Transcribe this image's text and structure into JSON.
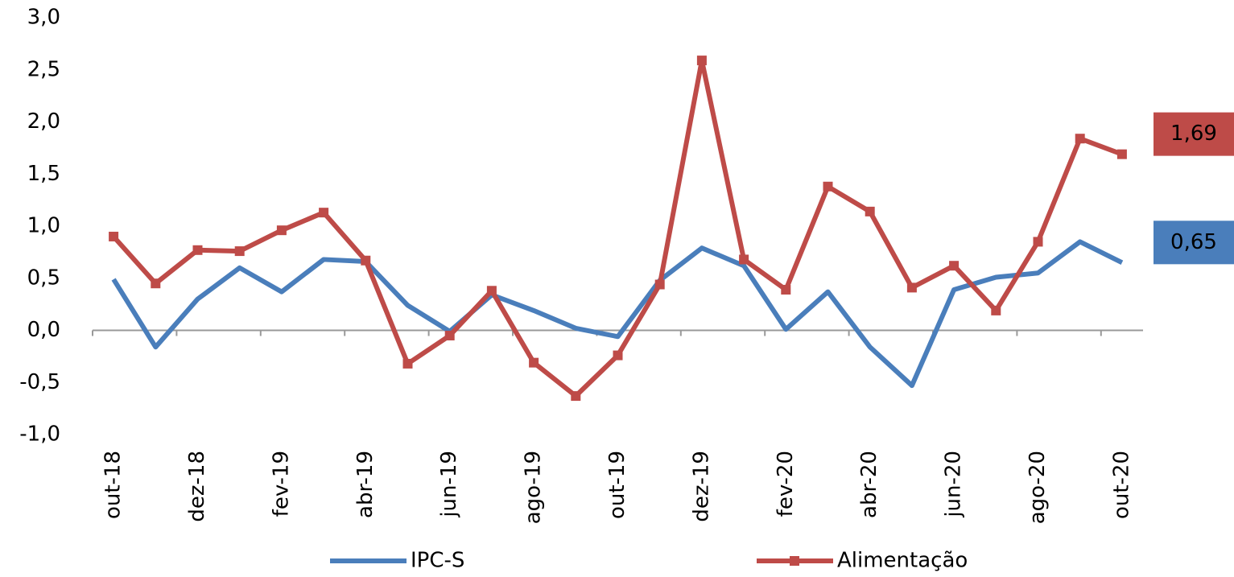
{
  "chart_data": {
    "type": "line",
    "categories": [
      "out-18",
      null,
      "dez-18",
      null,
      "fev-19",
      null,
      "abr-19",
      null,
      "jun-19",
      null,
      "ago-19",
      null,
      "out-19",
      null,
      "dez-19",
      null,
      "fev-20",
      null,
      "abr-20",
      null,
      "jun-20",
      null,
      "ago-20",
      null,
      "out-20"
    ],
    "series": [
      {
        "name": "IPC-S",
        "color": "#4a7ebb",
        "marker": false,
        "values": [
          0.49,
          -0.16,
          0.3,
          0.6,
          0.37,
          0.68,
          0.66,
          0.24,
          -0.01,
          0.34,
          0.19,
          0.02,
          -0.06,
          0.48,
          0.79,
          0.62,
          0.01,
          0.37,
          -0.16,
          -0.53,
          0.39,
          0.51,
          0.55,
          0.85,
          0.65
        ],
        "value_labels": [
          null,
          null,
          null,
          null,
          null,
          null,
          null,
          null,
          null,
          null,
          null,
          null,
          null,
          null,
          null,
          null,
          null,
          null,
          null,
          null,
          null,
          null,
          null,
          null,
          "0,65"
        ]
      },
      {
        "name": "Alimentação",
        "color": "#be4b48",
        "marker": true,
        "values": [
          0.9,
          0.45,
          0.77,
          0.76,
          0.96,
          1.13,
          0.67,
          -0.32,
          -0.05,
          0.38,
          -0.31,
          -0.63,
          -0.24,
          0.44,
          2.59,
          0.68,
          0.39,
          1.38,
          1.14,
          0.41,
          0.62,
          0.19,
          0.85,
          1.84,
          1.69
        ],
        "value_labels": [
          null,
          null,
          null,
          null,
          null,
          null,
          null,
          null,
          null,
          null,
          null,
          null,
          null,
          null,
          null,
          null,
          null,
          null,
          null,
          null,
          null,
          null,
          null,
          null,
          "1,69"
        ]
      }
    ],
    "ylim": [
      -1.0,
      3.0
    ],
    "yticks": [
      {
        "value": -1.0,
        "label": "-1,0"
      },
      {
        "value": -0.5,
        "label": "-0,5"
      },
      {
        "value": 0.0,
        "label": "0,0"
      },
      {
        "value": 0.5,
        "label": "0,5"
      },
      {
        "value": 1.0,
        "label": "1,0"
      },
      {
        "value": 1.5,
        "label": "1,5"
      },
      {
        "value": 2.0,
        "label": "2,0"
      },
      {
        "value": 2.5,
        "label": "2,5"
      },
      {
        "value": 3.0,
        "label": "3,0"
      }
    ],
    "grid": false,
    "legend": "bottom"
  }
}
